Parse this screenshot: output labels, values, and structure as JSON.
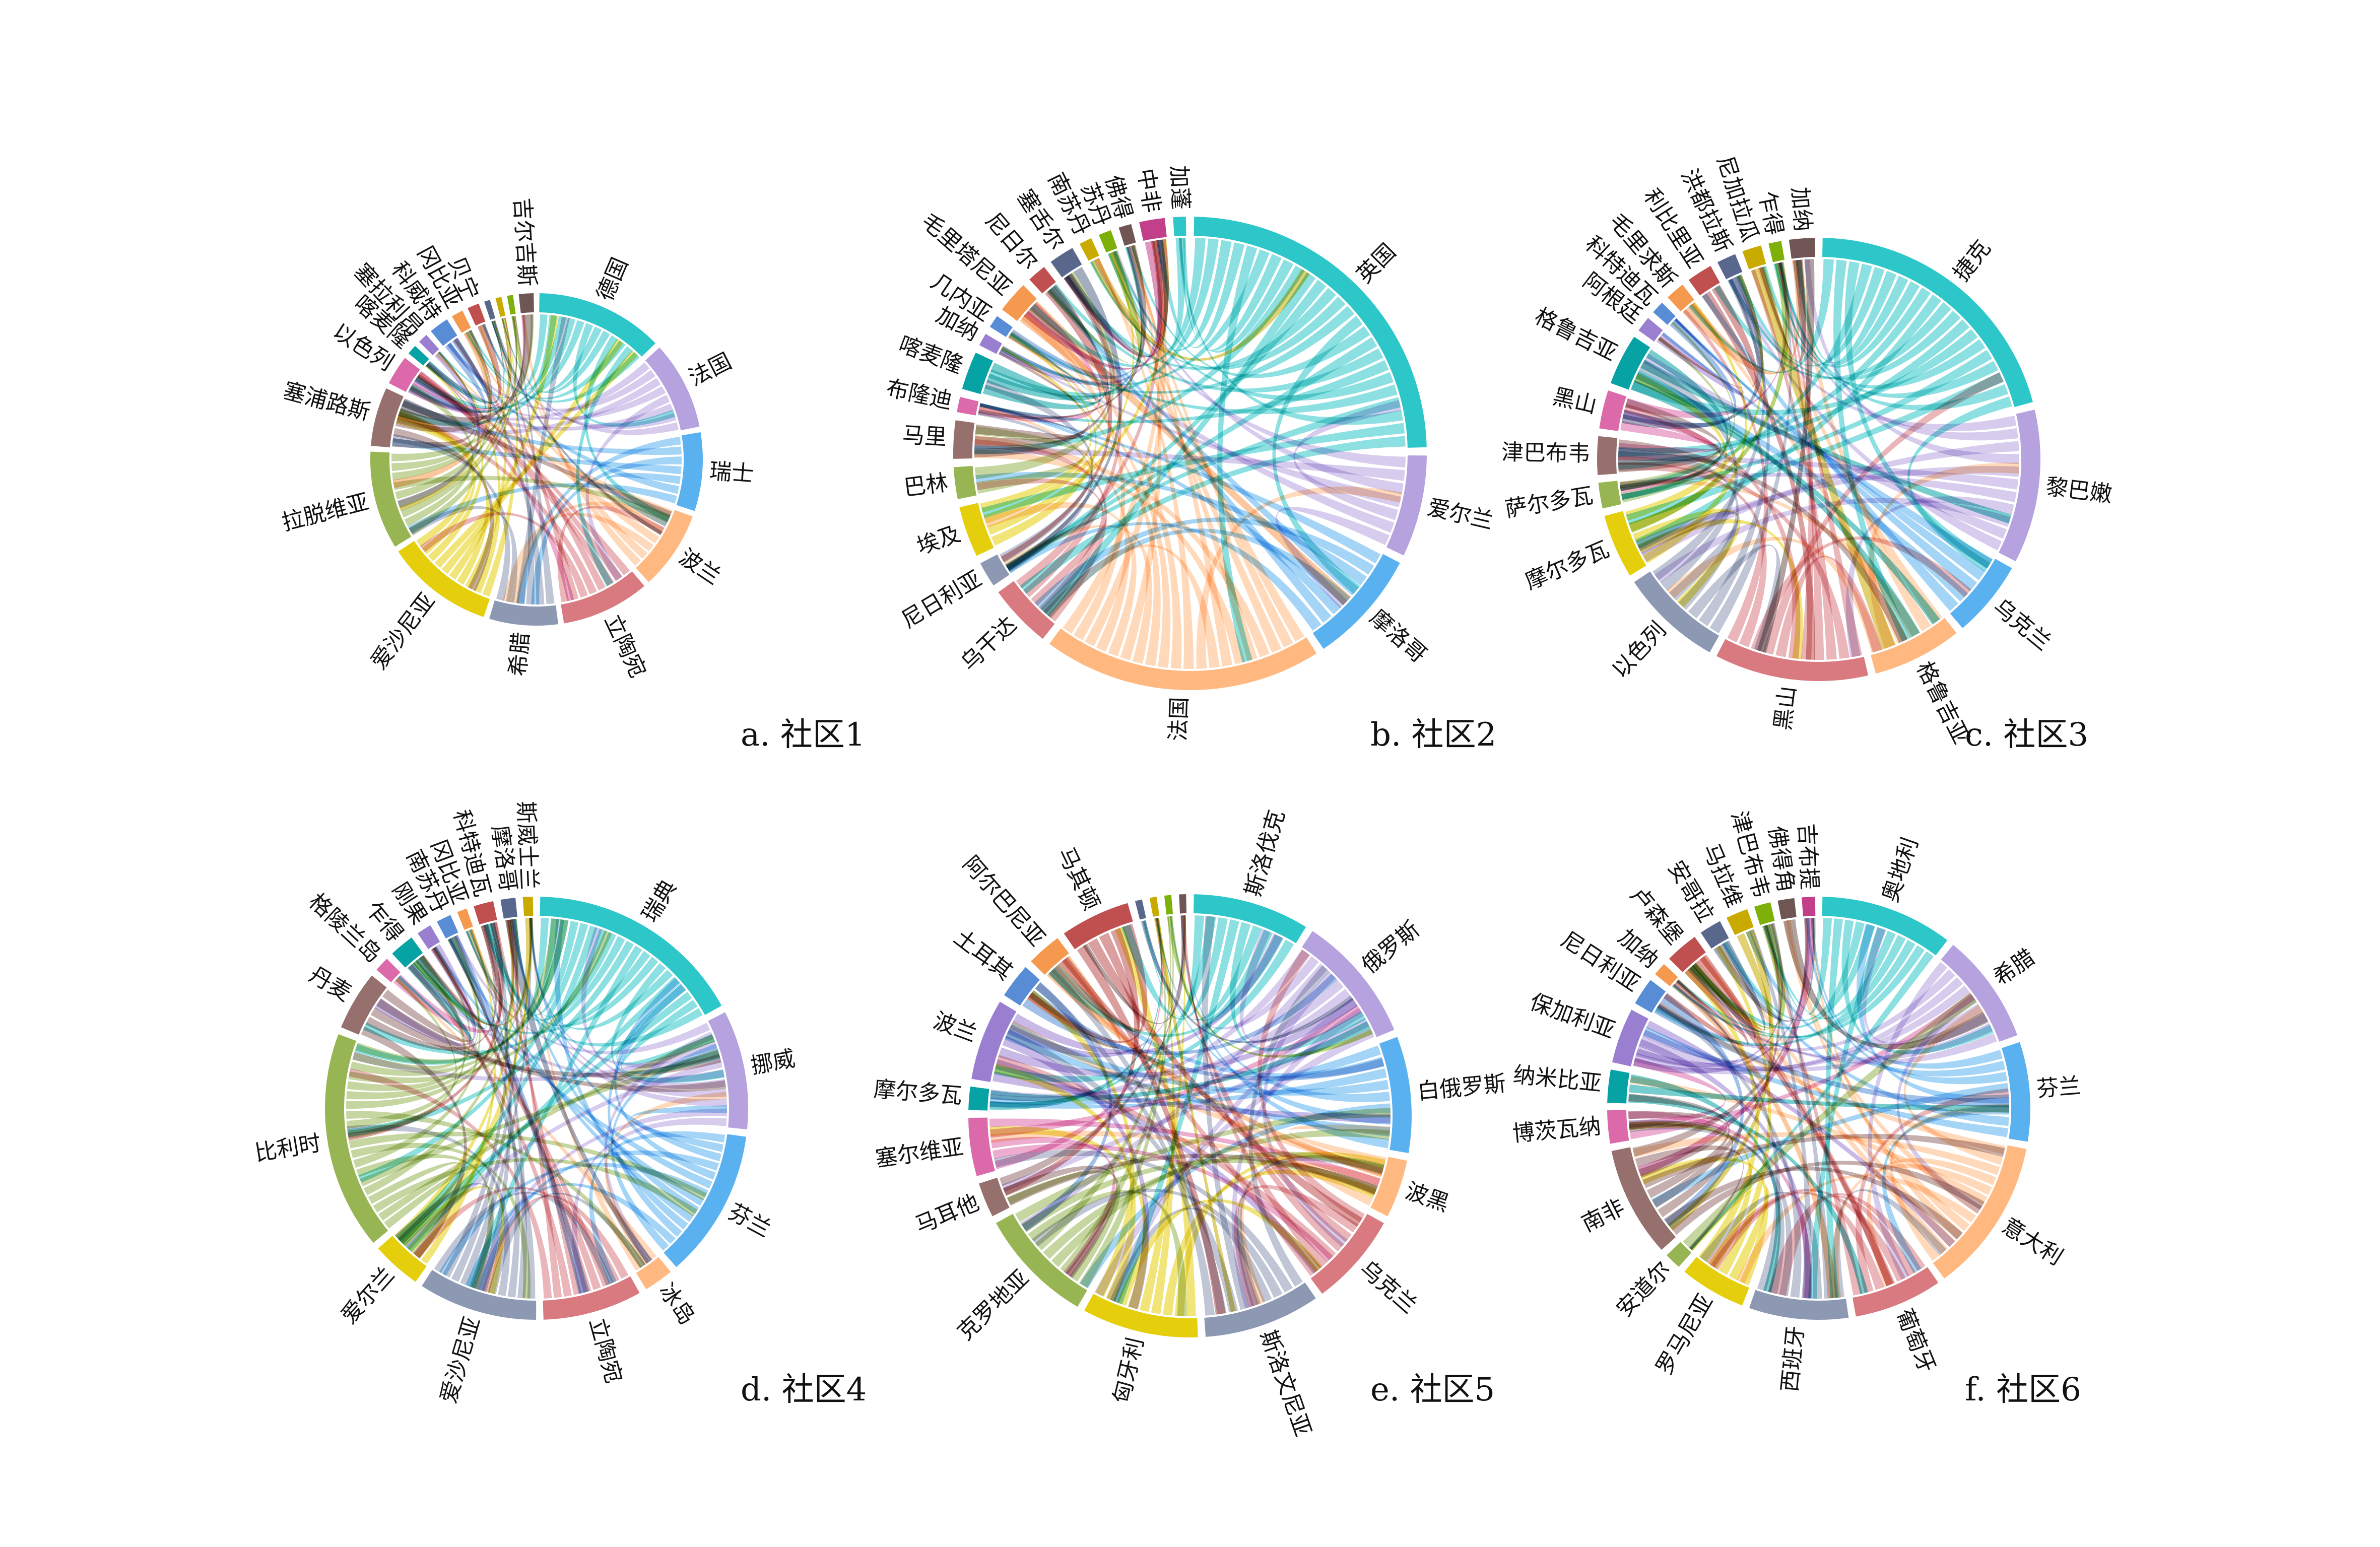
{
  "colors": [
    "#2ec7c9",
    "#b6a2de",
    "#5ab1ef",
    "#ffb980",
    "#d87a80",
    "#8d98b3",
    "#e5cf0d",
    "#97b552",
    "#95706d",
    "#dc69aa",
    "#07a2a4",
    "#9a7fd1",
    "#588dd5",
    "#f5994e",
    "#c05050",
    "#59678c",
    "#c9ab00",
    "#7eb00a",
    "#6f5553",
    "#c14089"
  ],
  "panels": [
    {
      "caption": "a. 社区1",
      "segments": [
        {
          "label": "德国",
          "weight": 13
        },
        {
          "label": "法国",
          "weight": 9
        },
        {
          "label": "瑞士",
          "weight": 8
        },
        {
          "label": "波兰",
          "weight": 8
        },
        {
          "label": "立陶宛",
          "weight": 9
        },
        {
          "label": "希腊",
          "weight": 7
        },
        {
          "label": "爱沙尼亚",
          "weight": 11
        },
        {
          "label": "拉脱维亚",
          "weight": 10
        },
        {
          "label": "塞浦路斯",
          "weight": 6
        },
        {
          "label": "以色列",
          "weight": 3
        },
        {
          "label": "喀麦隆",
          "weight": 1
        },
        {
          "label": "塞拉利昂",
          "weight": 1
        },
        {
          "label": "科威特",
          "weight": 2
        },
        {
          "label": "冈比亚",
          "weight": 1.2
        },
        {
          "label": "贝宁",
          "weight": 1.2
        },
        {
          "label": "",
          "weight": 0.6
        },
        {
          "label": "",
          "weight": 0.6
        },
        {
          "label": "",
          "weight": 0.6
        },
        {
          "label": "吉尔吉斯",
          "weight": 1.5
        }
      ]
    },
    {
      "caption": "b. 社区2",
      "segments": [
        {
          "label": "英国",
          "weight": 28
        },
        {
          "label": "爱尔兰",
          "weight": 8
        },
        {
          "label": "摩洛哥",
          "weight": 9
        },
        {
          "label": "法国",
          "weight": 22
        },
        {
          "label": "乌干达",
          "weight": 5
        },
        {
          "label": "尼日利亚",
          "weight": 2
        },
        {
          "label": "埃及",
          "weight": 4
        },
        {
          "label": "巴林",
          "weight": 2.5
        },
        {
          "label": "马里",
          "weight": 3
        },
        {
          "label": "布隆迪",
          "weight": 1.2
        },
        {
          "label": "喀麦隆",
          "weight": 3
        },
        {
          "label": "加纳",
          "weight": 1
        },
        {
          "label": "几内亚",
          "weight": 1
        },
        {
          "label": "毛里塔尼亚",
          "weight": 2.5
        },
        {
          "label": "尼日尔",
          "weight": 1.5
        },
        {
          "label": "塞舌尔",
          "weight": 2
        },
        {
          "label": "南苏丹",
          "weight": 1
        },
        {
          "label": "苏丹",
          "weight": 1
        },
        {
          "label": "佛得",
          "weight": 1
        },
        {
          "label": "中非",
          "weight": 2
        },
        {
          "label": "加蓬",
          "weight": 1
        }
      ]
    },
    {
      "caption": "c. 社区3",
      "segments": [
        {
          "label": "捷克",
          "weight": 22
        },
        {
          "label": "黎巴嫩",
          "weight": 12
        },
        {
          "label": "乌克兰",
          "weight": 6
        },
        {
          "label": "格鲁吉亚",
          "weight": 7
        },
        {
          "label": "黑山",
          "weight": 12
        },
        {
          "label": "以色列",
          "weight": 8
        },
        {
          "label": "摩尔多瓦",
          "weight": 5
        },
        {
          "label": "萨尔多瓦",
          "weight": 2
        },
        {
          "label": "津巴布韦",
          "weight": 3
        },
        {
          "label": "黑山",
          "weight": 3
        },
        {
          "label": "格鲁吉亚",
          "weight": 4
        },
        {
          "label": "阿根廷",
          "weight": 1.2
        },
        {
          "label": "科特迪瓦",
          "weight": 1
        },
        {
          "label": "毛里求斯",
          "weight": 1.5
        },
        {
          "label": "利比里亚",
          "weight": 2
        },
        {
          "label": "洪都拉斯",
          "weight": 1.5
        },
        {
          "label": "尼加拉瓜",
          "weight": 1.5
        },
        {
          "label": "乍得",
          "weight": 1
        },
        {
          "label": "加纳",
          "weight": 2
        }
      ]
    },
    {
      "caption": "d. 社区4",
      "segments": [
        {
          "label": "瑞典",
          "weight": 22
        },
        {
          "label": "挪威",
          "weight": 12
        },
        {
          "label": "芬兰",
          "weight": 15
        },
        {
          "label": "冰岛",
          "weight": 3
        },
        {
          "label": "立陶宛",
          "weight": 10
        },
        {
          "label": "爱沙尼亚",
          "weight": 12
        },
        {
          "label": "爱尔兰",
          "weight": 5
        },
        {
          "label": "比利时",
          "weight": 22
        },
        {
          "label": "丹麦",
          "weight": 6
        },
        {
          "label": "格陵兰岛",
          "weight": 1.5
        },
        {
          "label": "乍得",
          "weight": 2.5
        },
        {
          "label": "刚果",
          "weight": 1.5
        },
        {
          "label": "南苏丹",
          "weight": 1.5
        },
        {
          "label": "冈比亚",
          "weight": 1
        },
        {
          "label": "科特迪瓦",
          "weight": 2
        },
        {
          "label": "摩洛哥",
          "weight": 1.5
        },
        {
          "label": "斯威士兰",
          "weight": 1
        }
      ]
    },
    {
      "caption": "e. 社区5",
      "segments": [
        {
          "label": "斯洛伐克",
          "weight": 10
        },
        {
          "label": "俄罗斯",
          "weight": 11
        },
        {
          "label": "白俄罗斯",
          "weight": 10
        },
        {
          "label": "波黑",
          "weight": 5
        },
        {
          "label": "乌克兰",
          "weight": 8
        },
        {
          "label": "斯洛文尼亚",
          "weight": 10
        },
        {
          "label": "匈牙利",
          "weight": 10
        },
        {
          "label": "克罗地亚",
          "weight": 10
        },
        {
          "label": "马耳他",
          "weight": 3
        },
        {
          "label": "塞尔维亚",
          "weight": 5
        },
        {
          "label": "摩尔多瓦",
          "weight": 2
        },
        {
          "label": "波兰",
          "weight": 7
        },
        {
          "label": "土耳其",
          "weight": 3
        },
        {
          "label": "阿尔巴尼亚",
          "weight": 3
        },
        {
          "label": "马其顿",
          "weight": 6
        },
        {
          "label": "",
          "weight": 0.6
        },
        {
          "label": "",
          "weight": 0.6
        },
        {
          "label": "",
          "weight": 0.6
        },
        {
          "label": "",
          "weight": 0.6
        }
      ]
    },
    {
      "caption": "f. 社区6",
      "segments": [
        {
          "label": "奥地利",
          "weight": 12
        },
        {
          "label": "希腊",
          "weight": 10
        },
        {
          "label": "芬兰",
          "weight": 9
        },
        {
          "label": "意大利",
          "weight": 14
        },
        {
          "label": "葡萄牙",
          "weight": 8
        },
        {
          "label": "西班牙",
          "weight": 9
        },
        {
          "label": "罗马尼亚",
          "weight": 6
        },
        {
          "label": "安道尔",
          "weight": 1.5
        },
        {
          "label": "南非",
          "weight": 10
        },
        {
          "label": "博茨瓦纳",
          "weight": 3
        },
        {
          "label": "纳米比亚",
          "weight": 3
        },
        {
          "label": "保加利亚",
          "weight": 5
        },
        {
          "label": "尼日利亚",
          "weight": 2.5
        },
        {
          "label": "加纳",
          "weight": 1.2
        },
        {
          "label": "卢森堡",
          "weight": 3
        },
        {
          "label": "安哥拉",
          "weight": 2
        },
        {
          "label": "马拉维",
          "weight": 2
        },
        {
          "label": "津巴布韦",
          "weight": 1.5
        },
        {
          "label": "佛得角",
          "weight": 1.5
        },
        {
          "label": "吉布提",
          "weight": 1.2
        }
      ]
    }
  ]
}
